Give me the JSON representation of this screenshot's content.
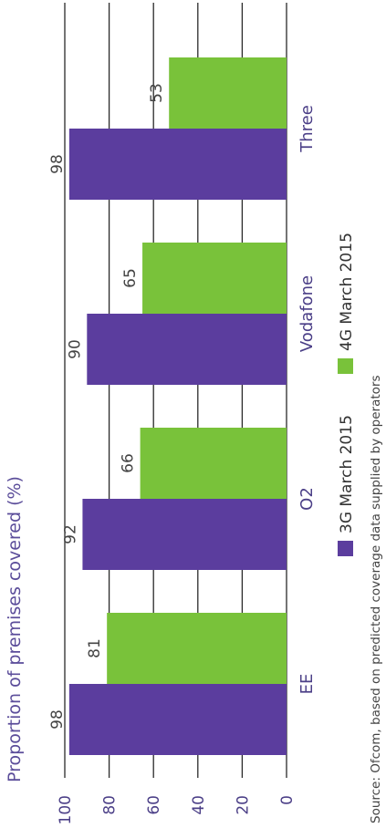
{
  "chart_data": {
    "type": "bar",
    "orientation": "vertical",
    "categories": [
      "EE",
      "O2",
      "Vodafone",
      "Three"
    ],
    "series": [
      {
        "name": "3G March 2015",
        "values": [
          98,
          92,
          90,
          98
        ],
        "color": "#5b3d9e"
      },
      {
        "name": "4G March 2015",
        "values": [
          81,
          66,
          65,
          53
        ],
        "color": "#79c23a"
      }
    ],
    "ylabel": "Proportion of premises covered (%)",
    "xlabel": "",
    "ylim": [
      0,
      100
    ],
    "yticks": [
      0,
      20,
      40,
      60,
      80,
      100
    ],
    "grid": true,
    "legend_position": "bottom",
    "data_labels": true
  },
  "source": "Source: Ofcom, based on predicted coverage data supplied by operators",
  "colors": {
    "axis_text": "#4b3f87",
    "grid": "#2a2a2a"
  }
}
